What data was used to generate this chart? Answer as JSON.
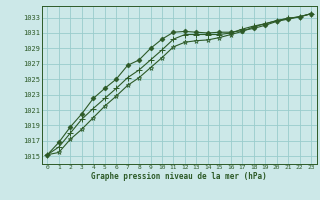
{
  "title": "Graphe pression niveau de la mer (hPa)",
  "background_color": "#cce8e8",
  "grid_color": "#99cccc",
  "line_color": "#2d5a27",
  "marker_color": "#2d5a27",
  "xlim": [
    -0.5,
    23.5
  ],
  "ylim": [
    1014.0,
    1034.5
  ],
  "yticks": [
    1015,
    1017,
    1019,
    1021,
    1023,
    1025,
    1027,
    1029,
    1031,
    1033
  ],
  "xticks": [
    0,
    1,
    2,
    3,
    4,
    5,
    6,
    7,
    8,
    9,
    10,
    11,
    12,
    13,
    14,
    15,
    16,
    17,
    18,
    19,
    20,
    21,
    22,
    23
  ],
  "series_top": [
    1015.2,
    1016.8,
    1018.8,
    1020.5,
    1022.5,
    1023.8,
    1025.0,
    1026.8,
    1027.5,
    1029.0,
    1030.2,
    1031.1,
    1031.2,
    1031.1,
    1031.0,
    1031.1,
    1031.1,
    1031.3,
    1031.6,
    1032.0,
    1032.5,
    1032.8,
    1033.1,
    1033.5
  ],
  "series_mid": [
    1015.2,
    1016.2,
    1018.0,
    1019.8,
    1021.2,
    1022.5,
    1023.8,
    1025.2,
    1026.2,
    1027.5,
    1028.8,
    1030.2,
    1030.8,
    1030.8,
    1030.8,
    1030.8,
    1031.0,
    1031.5,
    1031.9,
    1032.2,
    1032.6,
    1032.9,
    1033.1,
    1033.5
  ],
  "series_bot": [
    1015.2,
    1015.5,
    1017.2,
    1018.5,
    1020.0,
    1021.5,
    1022.8,
    1024.2,
    1025.2,
    1026.5,
    1027.8,
    1029.2,
    1029.8,
    1030.0,
    1030.1,
    1030.4,
    1030.8,
    1031.2,
    1031.8,
    1032.2,
    1032.6,
    1032.9,
    1033.1,
    1033.5
  ]
}
